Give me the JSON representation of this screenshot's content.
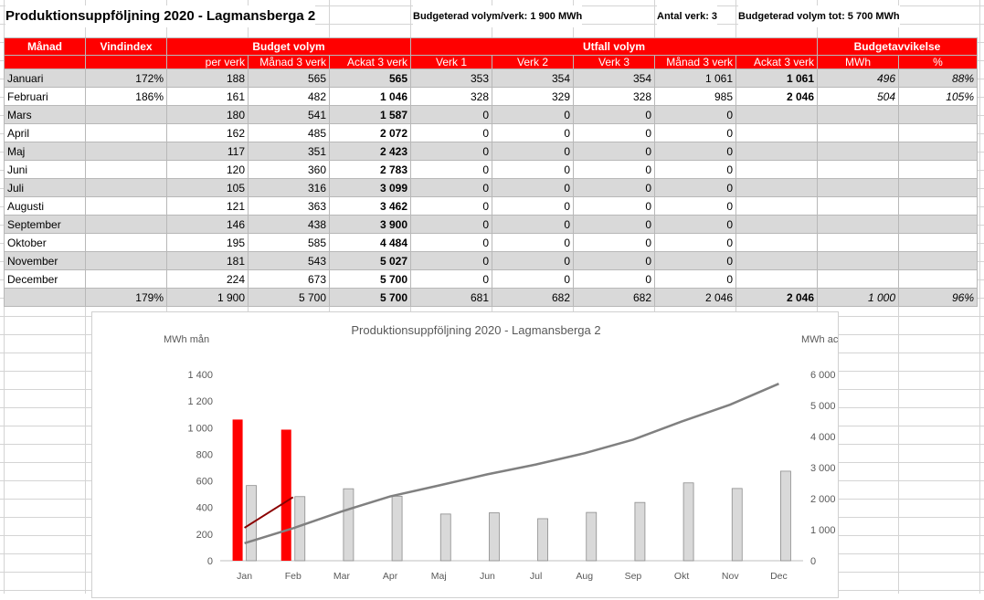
{
  "title": "Produktionsuppföljning 2020 - Lagmansberga 2",
  "meta": {
    "budget_per_verk": "Budgeterad volym/verk: 1 900 MWh",
    "antal_verk": "Antal verk: 3",
    "budget_tot": "Budgeterad volym tot: 5 700 MWh"
  },
  "headers": {
    "manad": "Månad",
    "vindindex": "Vindindex",
    "budget_volym": "Budget volym",
    "utfall_volym": "Utfall volym",
    "budgetavvikelse": "Budgetavvikelse",
    "per_verk": "per verk",
    "manad_3_verk": "Månad 3 verk",
    "ackat_3_verk": "Ackat 3 verk",
    "verk1": "Verk 1",
    "verk2": "Verk 2",
    "verk3": "Verk 3",
    "manad_3_verk_u": "Månad 3 verk",
    "ackat_3_verk_u": "Ackat 3 verk",
    "mwh": "MWh",
    "pct": "%"
  },
  "rows": [
    {
      "month": "Januari",
      "vind": "172%",
      "per": "188",
      "man": "565",
      "ack": "565",
      "v1": "353",
      "v2": "354",
      "v3": "354",
      "uman": "1 061",
      "uack": "1 061",
      "dmwh": "496",
      "dpct": "88%"
    },
    {
      "month": "Februari",
      "vind": "186%",
      "per": "161",
      "man": "482",
      "ack": "1 046",
      "v1": "328",
      "v2": "329",
      "v3": "328",
      "uman": "985",
      "uack": "2 046",
      "dmwh": "504",
      "dpct": "105%"
    },
    {
      "month": "Mars",
      "vind": "",
      "per": "180",
      "man": "541",
      "ack": "1 587",
      "v1": "0",
      "v2": "0",
      "v3": "0",
      "uman": "0",
      "uack": "",
      "dmwh": "",
      "dpct": ""
    },
    {
      "month": "April",
      "vind": "",
      "per": "162",
      "man": "485",
      "ack": "2 072",
      "v1": "0",
      "v2": "0",
      "v3": "0",
      "uman": "0",
      "uack": "",
      "dmwh": "",
      "dpct": ""
    },
    {
      "month": "Maj",
      "vind": "",
      "per": "117",
      "man": "351",
      "ack": "2 423",
      "v1": "0",
      "v2": "0",
      "v3": "0",
      "uman": "0",
      "uack": "",
      "dmwh": "",
      "dpct": ""
    },
    {
      "month": "Juni",
      "vind": "",
      "per": "120",
      "man": "360",
      "ack": "2 783",
      "v1": "0",
      "v2": "0",
      "v3": "0",
      "uman": "0",
      "uack": "",
      "dmwh": "",
      "dpct": ""
    },
    {
      "month": "Juli",
      "vind": "",
      "per": "105",
      "man": "316",
      "ack": "3 099",
      "v1": "0",
      "v2": "0",
      "v3": "0",
      "uman": "0",
      "uack": "",
      "dmwh": "",
      "dpct": ""
    },
    {
      "month": "Augusti",
      "vind": "",
      "per": "121",
      "man": "363",
      "ack": "3 462",
      "v1": "0",
      "v2": "0",
      "v3": "0",
      "uman": "0",
      "uack": "",
      "dmwh": "",
      "dpct": ""
    },
    {
      "month": "September",
      "vind": "",
      "per": "146",
      "man": "438",
      "ack": "3 900",
      "v1": "0",
      "v2": "0",
      "v3": "0",
      "uman": "0",
      "uack": "",
      "dmwh": "",
      "dpct": ""
    },
    {
      "month": "Oktober",
      "vind": "",
      "per": "195",
      "man": "585",
      "ack": "4 484",
      "v1": "0",
      "v2": "0",
      "v3": "0",
      "uman": "0",
      "uack": "",
      "dmwh": "",
      "dpct": ""
    },
    {
      "month": "November",
      "vind": "",
      "per": "181",
      "man": "543",
      "ack": "5 027",
      "v1": "0",
      "v2": "0",
      "v3": "0",
      "uman": "0",
      "uack": "",
      "dmwh": "",
      "dpct": ""
    },
    {
      "month": "December",
      "vind": "",
      "per": "224",
      "man": "673",
      "ack": "5 700",
      "v1": "0",
      "v2": "0",
      "v3": "0",
      "uman": "0",
      "uack": "",
      "dmwh": "",
      "dpct": ""
    }
  ],
  "totals": {
    "month": "",
    "vind": "179%",
    "per": "1 900",
    "man": "5 700",
    "ack": "5 700",
    "v1": "681",
    "v2": "682",
    "v3": "682",
    "uman": "2 046",
    "uack": "2 046",
    "dmwh": "1 000",
    "dpct": "96%"
  },
  "colors": {
    "outcome": "#ff0000",
    "budget": "#d9d9d9",
    "budget_line": "#808080",
    "outcome_line": "#8b0000",
    "header_bg": "#ff0000"
  },
  "chart_data": {
    "type": "bar",
    "title": "Produktionsuppföljning 2020 - Lagmansberga 2",
    "ylabel": "MWh mån",
    "y2label": "MWh ack",
    "categories": [
      "Jan",
      "Feb",
      "Mar",
      "Apr",
      "Maj",
      "Jun",
      "Jul",
      "Aug",
      "Sep",
      "Okt",
      "Nov",
      "Dec"
    ],
    "ylim": [
      0,
      1400
    ],
    "y2lim": [
      0,
      6000
    ],
    "yticks": [
      "0",
      "200",
      "400",
      "600",
      "800",
      "1 000",
      "1 200",
      "1 400"
    ],
    "y2ticks": [
      "0",
      "1 000",
      "2 000",
      "3 000",
      "4 000",
      "5 000",
      "6 000"
    ],
    "outcome_monthly": [
      1061,
      985,
      null,
      null,
      null,
      null,
      null,
      null,
      null,
      null,
      null,
      null
    ],
    "budget_monthly": [
      565,
      482,
      541,
      485,
      351,
      360,
      316,
      363,
      438,
      585,
      543,
      673
    ],
    "budget_cumulative": [
      565,
      1046,
      1587,
      2072,
      2423,
      2783,
      3099,
      3462,
      3900,
      4484,
      5027,
      5700
    ],
    "outcome_cumulative": [
      1061,
      2046,
      null,
      null,
      null,
      null,
      null,
      null,
      null,
      null,
      null,
      null
    ],
    "legend": "none",
    "grid": false
  }
}
